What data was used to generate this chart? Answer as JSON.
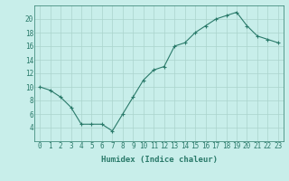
{
  "x": [
    0,
    1,
    2,
    3,
    4,
    5,
    6,
    7,
    8,
    9,
    10,
    11,
    12,
    13,
    14,
    15,
    16,
    17,
    18,
    19,
    20,
    21,
    22,
    23
  ],
  "y": [
    10,
    9.5,
    8.5,
    7,
    4.5,
    4.5,
    4.5,
    3.5,
    6,
    8.5,
    11,
    12.5,
    13,
    16,
    16.5,
    18,
    19,
    20,
    20.5,
    21,
    19,
    17.5,
    17,
    16.5
  ],
  "line_color": "#2a7a6a",
  "marker": "+",
  "bg_color": "#c8eeea",
  "grid_color": "#aad4cc",
  "xlabel": "Humidex (Indice chaleur)",
  "ylim": [
    2,
    22
  ],
  "xlim": [
    -0.5,
    23.5
  ],
  "yticks": [
    4,
    6,
    8,
    10,
    12,
    14,
    16,
    18,
    20
  ],
  "xtick_labels": [
    "0",
    "1",
    "2",
    "3",
    "4",
    "5",
    "6",
    "7",
    "8",
    "9",
    "10",
    "11",
    "12",
    "13",
    "14",
    "15",
    "16",
    "17",
    "18",
    "19",
    "20",
    "21",
    "22",
    "23"
  ],
  "label_fontsize": 6.5,
  "tick_fontsize": 5.5
}
